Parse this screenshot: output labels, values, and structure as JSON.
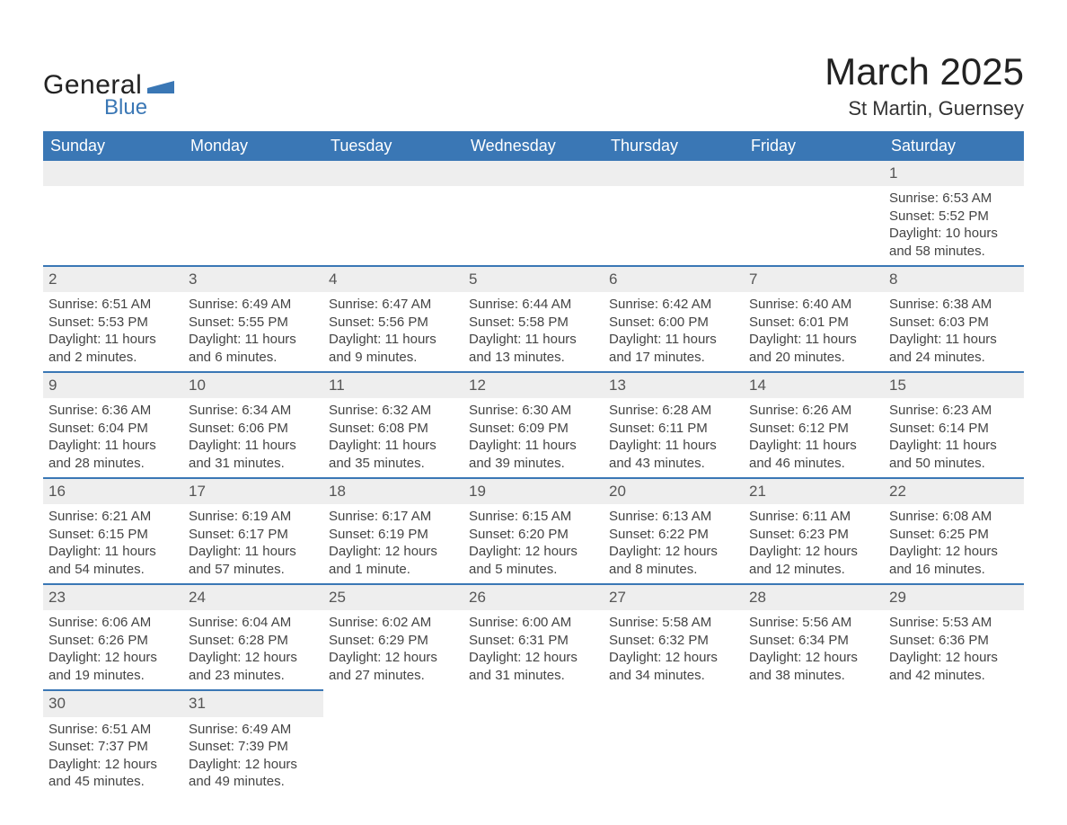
{
  "logo": {
    "general": "General",
    "blue": "Blue",
    "shape_color": "#3a77b5"
  },
  "title": "March 2025",
  "location": "St Martin, Guernsey",
  "colors": {
    "header_bg": "#3a77b5",
    "header_text": "#ffffff",
    "daynum_bg": "#eeeeee",
    "row_border": "#3a77b5",
    "text": "#444444",
    "title_text": "#222222"
  },
  "weekdays": [
    "Sunday",
    "Monday",
    "Tuesday",
    "Wednesday",
    "Thursday",
    "Friday",
    "Saturday"
  ],
  "weeks": [
    [
      null,
      null,
      null,
      null,
      null,
      null,
      {
        "d": "1",
        "sr": "Sunrise: 6:53 AM",
        "ss": "Sunset: 5:52 PM",
        "dl": "Daylight: 10 hours and 58 minutes."
      }
    ],
    [
      {
        "d": "2",
        "sr": "Sunrise: 6:51 AM",
        "ss": "Sunset: 5:53 PM",
        "dl": "Daylight: 11 hours and 2 minutes."
      },
      {
        "d": "3",
        "sr": "Sunrise: 6:49 AM",
        "ss": "Sunset: 5:55 PM",
        "dl": "Daylight: 11 hours and 6 minutes."
      },
      {
        "d": "4",
        "sr": "Sunrise: 6:47 AM",
        "ss": "Sunset: 5:56 PM",
        "dl": "Daylight: 11 hours and 9 minutes."
      },
      {
        "d": "5",
        "sr": "Sunrise: 6:44 AM",
        "ss": "Sunset: 5:58 PM",
        "dl": "Daylight: 11 hours and 13 minutes."
      },
      {
        "d": "6",
        "sr": "Sunrise: 6:42 AM",
        "ss": "Sunset: 6:00 PM",
        "dl": "Daylight: 11 hours and 17 minutes."
      },
      {
        "d": "7",
        "sr": "Sunrise: 6:40 AM",
        "ss": "Sunset: 6:01 PM",
        "dl": "Daylight: 11 hours and 20 minutes."
      },
      {
        "d": "8",
        "sr": "Sunrise: 6:38 AM",
        "ss": "Sunset: 6:03 PM",
        "dl": "Daylight: 11 hours and 24 minutes."
      }
    ],
    [
      {
        "d": "9",
        "sr": "Sunrise: 6:36 AM",
        "ss": "Sunset: 6:04 PM",
        "dl": "Daylight: 11 hours and 28 minutes."
      },
      {
        "d": "10",
        "sr": "Sunrise: 6:34 AM",
        "ss": "Sunset: 6:06 PM",
        "dl": "Daylight: 11 hours and 31 minutes."
      },
      {
        "d": "11",
        "sr": "Sunrise: 6:32 AM",
        "ss": "Sunset: 6:08 PM",
        "dl": "Daylight: 11 hours and 35 minutes."
      },
      {
        "d": "12",
        "sr": "Sunrise: 6:30 AM",
        "ss": "Sunset: 6:09 PM",
        "dl": "Daylight: 11 hours and 39 minutes."
      },
      {
        "d": "13",
        "sr": "Sunrise: 6:28 AM",
        "ss": "Sunset: 6:11 PM",
        "dl": "Daylight: 11 hours and 43 minutes."
      },
      {
        "d": "14",
        "sr": "Sunrise: 6:26 AM",
        "ss": "Sunset: 6:12 PM",
        "dl": "Daylight: 11 hours and 46 minutes."
      },
      {
        "d": "15",
        "sr": "Sunrise: 6:23 AM",
        "ss": "Sunset: 6:14 PM",
        "dl": "Daylight: 11 hours and 50 minutes."
      }
    ],
    [
      {
        "d": "16",
        "sr": "Sunrise: 6:21 AM",
        "ss": "Sunset: 6:15 PM",
        "dl": "Daylight: 11 hours and 54 minutes."
      },
      {
        "d": "17",
        "sr": "Sunrise: 6:19 AM",
        "ss": "Sunset: 6:17 PM",
        "dl": "Daylight: 11 hours and 57 minutes."
      },
      {
        "d": "18",
        "sr": "Sunrise: 6:17 AM",
        "ss": "Sunset: 6:19 PM",
        "dl": "Daylight: 12 hours and 1 minute."
      },
      {
        "d": "19",
        "sr": "Sunrise: 6:15 AM",
        "ss": "Sunset: 6:20 PM",
        "dl": "Daylight: 12 hours and 5 minutes."
      },
      {
        "d": "20",
        "sr": "Sunrise: 6:13 AM",
        "ss": "Sunset: 6:22 PM",
        "dl": "Daylight: 12 hours and 8 minutes."
      },
      {
        "d": "21",
        "sr": "Sunrise: 6:11 AM",
        "ss": "Sunset: 6:23 PM",
        "dl": "Daylight: 12 hours and 12 minutes."
      },
      {
        "d": "22",
        "sr": "Sunrise: 6:08 AM",
        "ss": "Sunset: 6:25 PM",
        "dl": "Daylight: 12 hours and 16 minutes."
      }
    ],
    [
      {
        "d": "23",
        "sr": "Sunrise: 6:06 AM",
        "ss": "Sunset: 6:26 PM",
        "dl": "Daylight: 12 hours and 19 minutes."
      },
      {
        "d": "24",
        "sr": "Sunrise: 6:04 AM",
        "ss": "Sunset: 6:28 PM",
        "dl": "Daylight: 12 hours and 23 minutes."
      },
      {
        "d": "25",
        "sr": "Sunrise: 6:02 AM",
        "ss": "Sunset: 6:29 PM",
        "dl": "Daylight: 12 hours and 27 minutes."
      },
      {
        "d": "26",
        "sr": "Sunrise: 6:00 AM",
        "ss": "Sunset: 6:31 PM",
        "dl": "Daylight: 12 hours and 31 minutes."
      },
      {
        "d": "27",
        "sr": "Sunrise: 5:58 AM",
        "ss": "Sunset: 6:32 PM",
        "dl": "Daylight: 12 hours and 34 minutes."
      },
      {
        "d": "28",
        "sr": "Sunrise: 5:56 AM",
        "ss": "Sunset: 6:34 PM",
        "dl": "Daylight: 12 hours and 38 minutes."
      },
      {
        "d": "29",
        "sr": "Sunrise: 5:53 AM",
        "ss": "Sunset: 6:36 PM",
        "dl": "Daylight: 12 hours and 42 minutes."
      }
    ],
    [
      {
        "d": "30",
        "sr": "Sunrise: 6:51 AM",
        "ss": "Sunset: 7:37 PM",
        "dl": "Daylight: 12 hours and 45 minutes."
      },
      {
        "d": "31",
        "sr": "Sunrise: 6:49 AM",
        "ss": "Sunset: 7:39 PM",
        "dl": "Daylight: 12 hours and 49 minutes."
      },
      null,
      null,
      null,
      null,
      null
    ]
  ]
}
